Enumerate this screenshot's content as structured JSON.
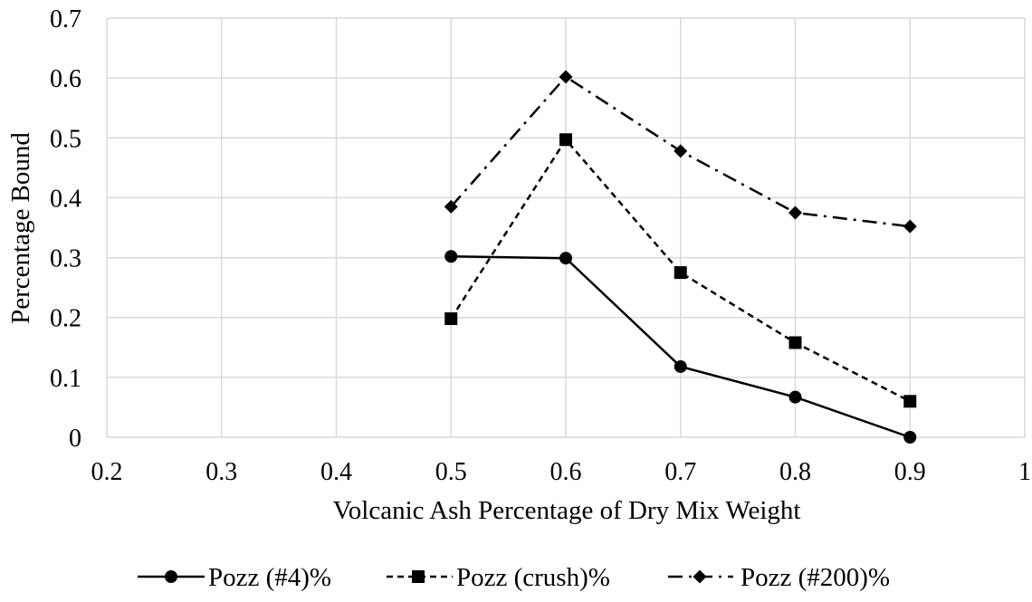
{
  "chart_data": {
    "type": "line",
    "title": "",
    "xlabel": "Volcanic Ash Percentage of Dry Mix Weight",
    "ylabel": "Percentage Bound",
    "xlim": [
      0.2,
      1.0
    ],
    "ylim": [
      0,
      0.7
    ],
    "x_ticks": [
      "0.2",
      "0.3",
      "0.4",
      "0.5",
      "0.6",
      "0.7",
      "0.8",
      "0.9",
      "1"
    ],
    "y_ticks": [
      "0",
      "0.1",
      "0.2",
      "0.3",
      "0.4",
      "0.5",
      "0.6",
      "0.7"
    ],
    "grid": true,
    "legend_position": "bottom",
    "x": [
      0.5,
      0.6,
      0.7,
      0.8,
      0.9
    ],
    "series": [
      {
        "name": "Pozz (#4)%",
        "values": [
          0.302,
          0.299,
          0.118,
          0.067,
          0.0
        ],
        "marker": "circle",
        "line_style": "solid"
      },
      {
        "name": "Pozz (crush)%",
        "values": [
          0.198,
          0.497,
          0.275,
          0.158,
          0.06
        ],
        "marker": "square",
        "line_style": "dashed"
      },
      {
        "name": "Pozz (#200)%",
        "values": [
          0.385,
          0.602,
          0.478,
          0.375,
          0.352
        ],
        "marker": "diamond",
        "line_style": "dash-dot"
      }
    ]
  }
}
